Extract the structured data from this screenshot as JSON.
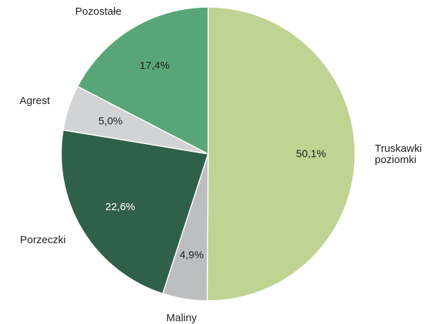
{
  "chart_data": {
    "type": "pie",
    "categories": [
      "Truskawki i poziomki",
      "Maliny",
      "Porzeczki",
      "Agrest",
      "Pozostałe"
    ],
    "values": [
      50.1,
      4.9,
      22.6,
      5.0,
      17.4
    ],
    "value_labels": [
      "50,1%",
      "4,9%",
      "22,6%",
      "5,0%",
      "17,4%"
    ],
    "colors": [
      "#bfd393",
      "#bcbec0",
      "#31604a",
      "#d1d3d4",
      "#58a677"
    ],
    "value_label_colors": [
      "#222222",
      "#222222",
      "#ffffff",
      "#222222",
      "#222222"
    ]
  }
}
